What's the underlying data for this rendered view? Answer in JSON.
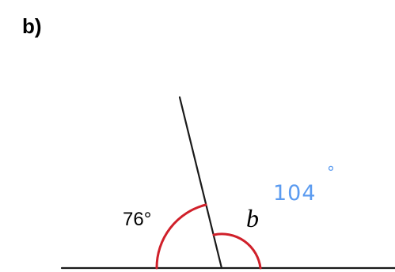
{
  "question": {
    "part_label": "b)"
  },
  "diagram": {
    "known_angle": "76°",
    "unknown_angle": "b",
    "handwritten_answer": {
      "number": "104",
      "degree_symbol": "°"
    }
  },
  "colors": {
    "line": "#1a1a1a",
    "arc": "#d0202a",
    "handwriting": "#5b9bf0"
  }
}
